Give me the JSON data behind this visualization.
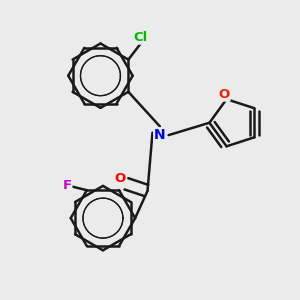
{
  "bg_color": "#ebebeb",
  "bond_color": "#1a1a1a",
  "bond_width": 1.8,
  "atom_labels": {
    "Cl": {
      "color": "#00bb00",
      "fontsize": 9.5
    },
    "N": {
      "color": "#0000ee",
      "fontsize": 9.5
    },
    "O_carbonyl": {
      "color": "#ff0000",
      "fontsize": 9.5
    },
    "F": {
      "color": "#cc00cc",
      "fontsize": 9.5
    },
    "O_furan": {
      "color": "#ee2200",
      "fontsize": 9.5
    }
  },
  "xlim": [
    -1.1,
    1.3
  ],
  "ylim": [
    -1.1,
    1.1
  ]
}
